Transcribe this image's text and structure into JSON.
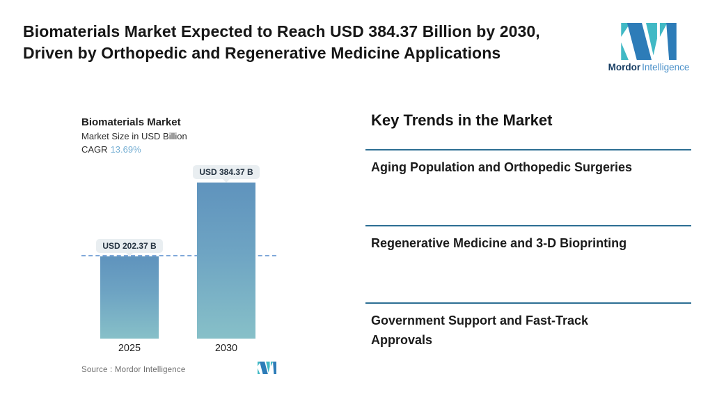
{
  "header": {
    "title": "Biomaterials Market Expected to Reach USD 384.37 Billion by 2030,\nDriven by Orthopedic and Regenerative Medicine Applications",
    "logo": {
      "brand_bold": "Mordor",
      "brand_light": "Intelligence"
    }
  },
  "chart": {
    "title": "Biomaterials Market",
    "subtitle": "Market Size in USD Billion",
    "cagr_label": "CAGR",
    "cagr_value": "13.69%",
    "bar_labels": [
      "USD 202.37 B",
      "USD 384.37 B"
    ],
    "x_labels": [
      "2025",
      "2030"
    ],
    "source_label": "Source :  Mordor Intelligence"
  },
  "chart_data": {
    "type": "bar",
    "categories": [
      "2025",
      "2030"
    ],
    "values": [
      202.37,
      384.37
    ],
    "data_labels": [
      "USD 202.37 B",
      "USD 384.37 B"
    ],
    "title": "Biomaterials Market",
    "xlabel": "",
    "ylabel": "Market Size in USD Billion",
    "ylim": [
      0,
      384.37
    ],
    "cagr_percent": 13.69,
    "grid": false,
    "legend": false,
    "annotations": [
      "horizontal dashed reference line at 2025 value (202.37)"
    ]
  },
  "trends": {
    "heading": "Key Trends in the Market",
    "items": [
      "Aging Population and Orthopedic Surgeries",
      "Regenerative Medicine and 3-D Bioprinting",
      "Government Support and Fast-Track\nApprovals"
    ]
  },
  "colors": {
    "brand_teal": "#41b9c5",
    "brand_blue": "#2d7cb8",
    "brand_text_dark": "#173d63",
    "brand_text_light": "#4a90c9",
    "bar_gradient_top": "#5f93bd",
    "bar_gradient_bottom": "#87c0c8",
    "dashed_line": "#7fa8d9",
    "pill_background": "#e9eef1",
    "cagr_value": "#74aed3",
    "divider": "#2c6e93",
    "source_text": "#6e6e6e"
  }
}
